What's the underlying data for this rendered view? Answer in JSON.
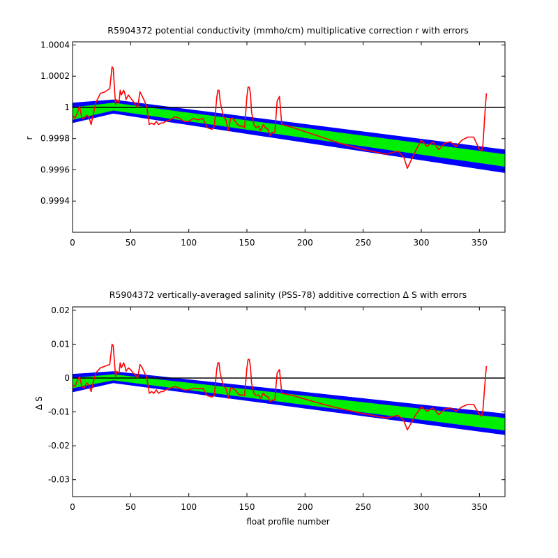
{
  "chart_data": [
    {
      "type": "line",
      "title": "R5904372 potential conductivity (mmho/cm) multiplicative correction r with errors",
      "xlabel": "",
      "ylabel": "r",
      "xlim": [
        0,
        372
      ],
      "ylim": [
        0.9992,
        1.00042
      ],
      "xticks": [
        0,
        50,
        100,
        150,
        200,
        250,
        300,
        350
      ],
      "xtick_labels": [
        "0",
        "50",
        "100",
        "150",
        "200",
        "250",
        "300",
        "350"
      ],
      "yticks": [
        0.9994,
        0.9996,
        0.9998,
        1.0,
        1.0002,
        1.0004
      ],
      "ytick_labels": [
        "0.9994",
        "0.9996",
        "0.9998",
        "1",
        "1.0002",
        "1.0004"
      ],
      "reference_line": 1.0,
      "colors": {
        "outer_band": "#0000ff",
        "inner_band": "#00ee00",
        "series": "#ff0000",
        "reference": "#000000"
      },
      "outer_band": {
        "x": [
          0,
          35,
          372
        ],
        "upper": [
          1.00003,
          1.00005,
          0.99973
        ],
        "lower": [
          0.9999,
          0.99996,
          0.99958
        ]
      },
      "inner_band": {
        "x": [
          0,
          35,
          372
        ],
        "upper": [
          1.0,
          1.00003,
          0.9997
        ],
        "lower": [
          0.99992,
          0.99998,
          0.99962
        ]
      },
      "series": [
        {
          "x": [
            0,
            2,
            4,
            6,
            8,
            10,
            12,
            14,
            16,
            18,
            20,
            24,
            28,
            32,
            34,
            35,
            36,
            37,
            38,
            40,
            41,
            42,
            44,
            45,
            46,
            48,
            50,
            52,
            54,
            56,
            58,
            60,
            62,
            64,
            66,
            68,
            70,
            72,
            74,
            76,
            78,
            80,
            84,
            88,
            92,
            96,
            100,
            104,
            108,
            112,
            116,
            120,
            122,
            124,
            125,
            126,
            127,
            128,
            130,
            132,
            134,
            136,
            138,
            140,
            142,
            144,
            146,
            148,
            150,
            151,
            152,
            153,
            154,
            156,
            158,
            160,
            162,
            164,
            166,
            168,
            170,
            172,
            174,
            176,
            178,
            180,
            190,
            210,
            230,
            250,
            270,
            280,
            285,
            288,
            295,
            300,
            305,
            310,
            315,
            320,
            325,
            330,
            335,
            340,
            345,
            350,
            352,
            353,
            355,
            356
          ],
          "y": [
            0.99995,
            0.99993,
            0.99996,
            1.00001,
            0.99993,
            0.99993,
            0.99995,
            0.99994,
            0.99989,
            0.99996,
            1.00003,
            1.00009,
            1.0001,
            1.00012,
            1.00026,
            1.00025,
            1.00013,
            1.00002,
            1.00005,
            1.00003,
            1.00011,
            1.00008,
            1.00011,
            1.00009,
            1.00005,
            1.00008,
            1.00006,
            1.00004,
            1.00002,
            1.0,
            1.0001,
            1.00007,
            1.00004,
            1.0,
            0.99989,
            0.9999,
            0.99989,
            0.99991,
            0.99989,
            0.9999,
            0.9999,
            0.99991,
            0.99992,
            0.99994,
            0.99993,
            0.99991,
            0.99991,
            0.99993,
            0.99992,
            0.99993,
            0.99987,
            0.99986,
            0.99988,
            1.00006,
            1.00011,
            1.00011,
            1.00004,
            1.0,
            0.99994,
            0.99992,
            0.99985,
            0.99993,
            0.99993,
            0.99991,
            0.99989,
            0.99988,
            0.99988,
            0.99987,
            1.00007,
            1.00013,
            1.00013,
            1.00009,
            0.99997,
            0.99989,
            0.99987,
            0.99988,
            0.99985,
            0.99989,
            0.99987,
            0.99986,
            0.99982,
            0.99984,
            0.99984,
            1.00004,
            1.00007,
            0.99989,
            0.99987,
            0.99982,
            0.99977,
            0.99973,
            0.9997,
            0.99972,
            0.99968,
            0.99961,
            0.99972,
            0.99979,
            0.99975,
            0.99978,
            0.99973,
            0.99977,
            0.99978,
            0.99975,
            0.99979,
            0.99981,
            0.99981,
            0.99973,
            0.99972,
            0.99976,
            0.99999,
            1.00009
          ]
        }
      ]
    },
    {
      "type": "line",
      "title": "R5904372 vertically-averaged salinity (PSS-78) additive correction Δ S with errors",
      "xlabel": "float profile number",
      "ylabel": "Δ S",
      "xlim": [
        0,
        372
      ],
      "ylim": [
        -0.035,
        0.021
      ],
      "xticks": [
        0,
        50,
        100,
        150,
        200,
        250,
        300,
        350
      ],
      "xtick_labels": [
        "0",
        "50",
        "100",
        "150",
        "200",
        "250",
        "300",
        "350"
      ],
      "yticks": [
        -0.03,
        -0.02,
        -0.01,
        0,
        0.01,
        0.02
      ],
      "ytick_labels": [
        "-0.03",
        "-0.02",
        "-0.01",
        "0",
        "0.01",
        "0.02"
      ],
      "reference_line": 0,
      "colors": {
        "outer_band": "#0000ff",
        "inner_band": "#00ee00",
        "series": "#ff0000",
        "reference": "#000000"
      },
      "outer_band": {
        "x": [
          0,
          35,
          372
        ],
        "upper": [
          0.0012,
          0.002,
          -0.0105
        ],
        "lower": [
          -0.0042,
          -0.0015,
          -0.0168
        ]
      },
      "inner_band": {
        "x": [
          0,
          35,
          372
        ],
        "upper": [
          0.0,
          0.0011,
          -0.0118
        ],
        "lower": [
          -0.003,
          -0.0007,
          -0.0155
        ]
      },
      "series": [
        {
          "x": [
            0,
            2,
            4,
            6,
            8,
            10,
            12,
            14,
            16,
            18,
            20,
            24,
            28,
            32,
            34,
            35,
            36,
            37,
            38,
            40,
            41,
            42,
            44,
            45,
            46,
            48,
            50,
            52,
            54,
            56,
            58,
            60,
            62,
            64,
            66,
            68,
            70,
            72,
            74,
            76,
            78,
            80,
            84,
            88,
            92,
            96,
            100,
            104,
            108,
            112,
            116,
            120,
            122,
            124,
            125,
            126,
            127,
            128,
            130,
            132,
            134,
            136,
            138,
            140,
            142,
            144,
            146,
            148,
            150,
            151,
            152,
            153,
            154,
            156,
            158,
            160,
            162,
            164,
            166,
            168,
            170,
            172,
            174,
            176,
            178,
            180,
            190,
            210,
            230,
            250,
            270,
            280,
            285,
            288,
            295,
            300,
            305,
            310,
            315,
            320,
            325,
            330,
            335,
            340,
            345,
            350,
            352,
            353,
            355,
            356
          ],
          "y": [
            -0.002,
            -0.0025,
            -0.001,
            0.0005,
            -0.0025,
            -0.003,
            -0.0015,
            -0.002,
            -0.004,
            -0.001,
            0.0015,
            0.003,
            0.0035,
            0.004,
            0.01,
            0.0095,
            0.005,
            0.0005,
            0.002,
            0.0015,
            0.0045,
            0.003,
            0.0045,
            0.0035,
            0.002,
            0.003,
            0.0025,
            0.0015,
            0.001,
            0.0,
            0.004,
            0.003,
            0.0015,
            0.0,
            -0.0045,
            -0.004,
            -0.0045,
            -0.0035,
            -0.0045,
            -0.004,
            -0.004,
            -0.0035,
            -0.003,
            -0.0025,
            -0.003,
            -0.0035,
            -0.0035,
            -0.003,
            -0.0032,
            -0.003,
            -0.0052,
            -0.0056,
            -0.005,
            0.0025,
            0.0045,
            0.0045,
            0.0015,
            0.0,
            -0.0025,
            -0.003,
            -0.006,
            -0.003,
            -0.003,
            -0.0035,
            -0.0045,
            -0.005,
            -0.005,
            -0.0052,
            0.003,
            0.0055,
            0.0055,
            0.0035,
            -0.0015,
            -0.0045,
            -0.0052,
            -0.005,
            -0.006,
            -0.0045,
            -0.0052,
            -0.0055,
            -0.007,
            -0.0065,
            -0.0065,
            0.0015,
            0.0025,
            -0.0045,
            -0.0052,
            -0.0072,
            -0.009,
            -0.0105,
            -0.0118,
            -0.011,
            -0.0126,
            -0.0153,
            -0.011,
            -0.0085,
            -0.0098,
            -0.0088,
            -0.0108,
            -0.0092,
            -0.0088,
            -0.0098,
            -0.0085,
            -0.0078,
            -0.0078,
            -0.0108,
            -0.0112,
            -0.0095,
            -0.0005,
            0.0035
          ]
        }
      ]
    }
  ]
}
